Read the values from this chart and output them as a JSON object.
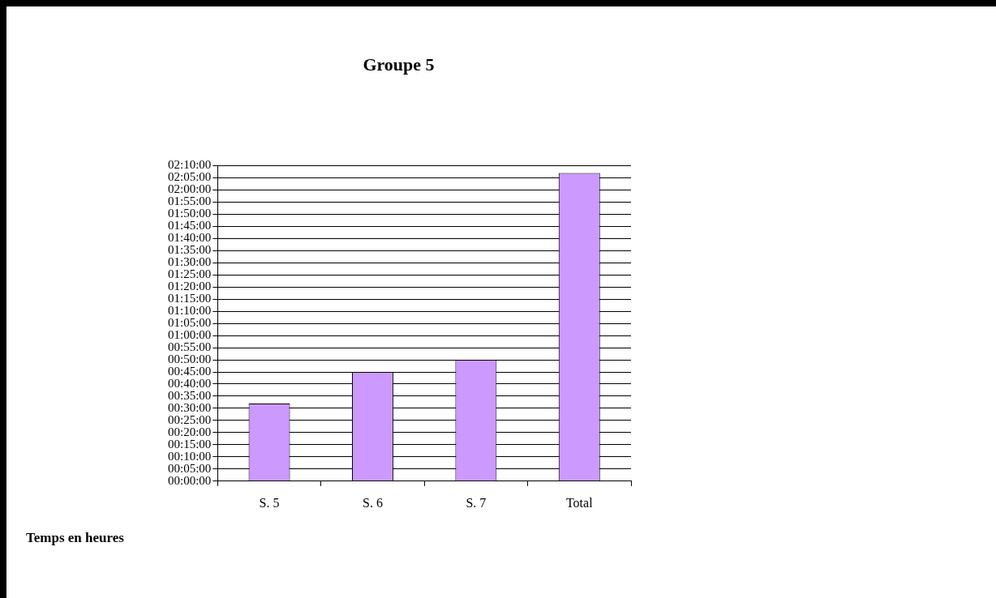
{
  "chart_data": {
    "type": "bar",
    "title": "Groupe 5",
    "categories": [
      "S. 5",
      "S. 6",
      "S. 7",
      "Total"
    ],
    "values": [
      32,
      45,
      50,
      127
    ],
    "color": "#cc99ff",
    "ylim": [
      0,
      130
    ],
    "yticks": [
      {
        "value": 0,
        "label": "00:00:00"
      },
      {
        "value": 5,
        "label": "00:05:00"
      },
      {
        "value": 10,
        "label": "00:10:00"
      },
      {
        "value": 15,
        "label": "00:15:00"
      },
      {
        "value": 20,
        "label": "00:20:00"
      },
      {
        "value": 25,
        "label": "00:25:00"
      },
      {
        "value": 30,
        "label": "00:30:00"
      },
      {
        "value": 35,
        "label": "00:35:00"
      },
      {
        "value": 40,
        "label": "00:40:00"
      },
      {
        "value": 45,
        "label": "00:45:00"
      },
      {
        "value": 50,
        "label": "00:50:00"
      },
      {
        "value": 55,
        "label": "00:55:00"
      },
      {
        "value": 60,
        "label": "01:00:00"
      },
      {
        "value": 65,
        "label": "01:05:00"
      },
      {
        "value": 70,
        "label": "01:10:00"
      },
      {
        "value": 75,
        "label": "01:15:00"
      },
      {
        "value": 80,
        "label": "01:20:00"
      },
      {
        "value": 85,
        "label": "01:25:00"
      },
      {
        "value": 90,
        "label": "01:30:00"
      },
      {
        "value": 95,
        "label": "01:35:00"
      },
      {
        "value": 100,
        "label": "01:40:00"
      },
      {
        "value": 105,
        "label": "01:45:00"
      },
      {
        "value": 110,
        "label": "01:50:00"
      },
      {
        "value": 115,
        "label": "01:55:00"
      },
      {
        "value": 120,
        "label": "02:00:00"
      },
      {
        "value": 125,
        "label": "02:05:00"
      },
      {
        "value": 130,
        "label": "02:10:00"
      }
    ],
    "grid": "y",
    "legend": false,
    "annotations": [
      "Temps en heures"
    ]
  }
}
